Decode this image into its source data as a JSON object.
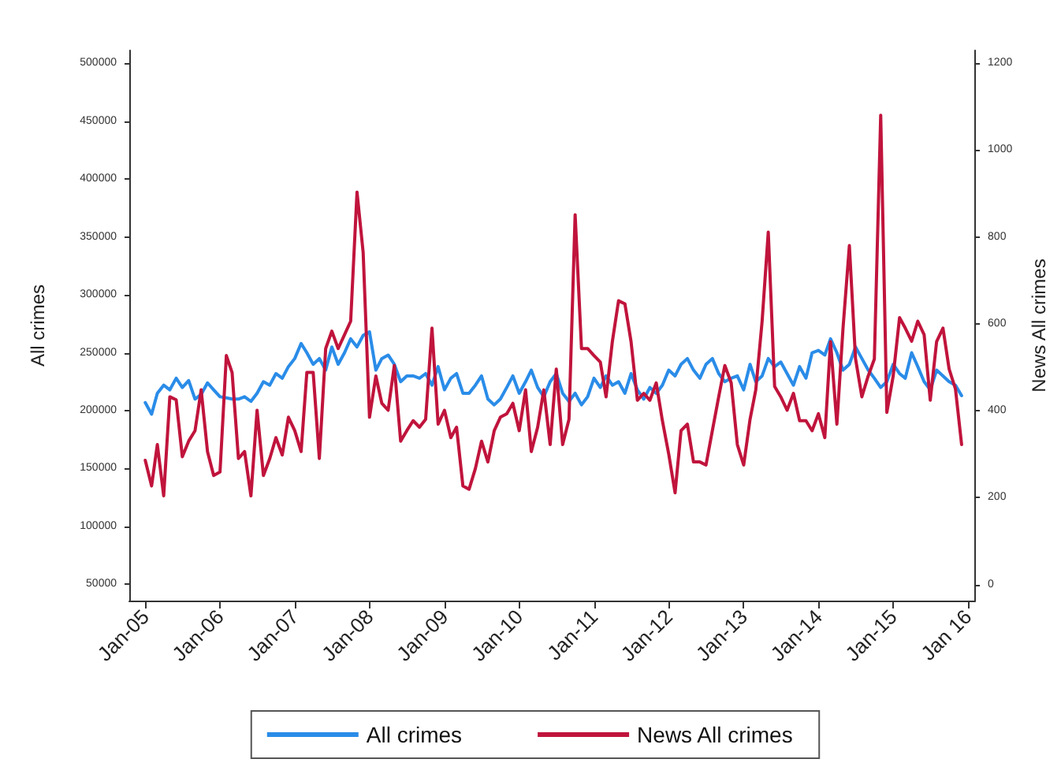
{
  "chart_data": {
    "type": "line",
    "xlabel": null,
    "ylabel": "All crimes",
    "y2label": "News All crimes",
    "x": [
      "2005-01",
      "2005-02",
      "2005-03",
      "2005-04",
      "2005-05",
      "2005-06",
      "2005-07",
      "2005-08",
      "2005-09",
      "2005-10",
      "2005-11",
      "2005-12",
      "2006-01",
      "2006-02",
      "2006-03",
      "2006-04",
      "2006-05",
      "2006-06",
      "2006-07",
      "2006-08",
      "2006-09",
      "2006-10",
      "2006-11",
      "2006-12",
      "2007-01",
      "2007-02",
      "2007-03",
      "2007-04",
      "2007-05",
      "2007-06",
      "2007-07",
      "2007-08",
      "2007-09",
      "2007-10",
      "2007-11",
      "2007-12",
      "2008-01",
      "2008-02",
      "2008-03",
      "2008-04",
      "2008-05",
      "2008-06",
      "2008-07",
      "2008-08",
      "2008-09",
      "2008-10",
      "2008-11",
      "2008-12",
      "2009-01",
      "2009-02",
      "2009-03",
      "2009-04",
      "2009-05",
      "2009-06",
      "2009-07",
      "2009-08",
      "2009-09",
      "2009-10",
      "2009-11",
      "2009-12",
      "2010-01",
      "2010-02",
      "2010-03",
      "2010-04",
      "2010-05",
      "2010-06",
      "2010-07",
      "2010-08",
      "2010-09",
      "2010-10",
      "2010-11",
      "2010-12",
      "2011-01",
      "2011-02",
      "2011-03",
      "2011-04",
      "2011-05",
      "2011-06",
      "2011-07",
      "2011-08",
      "2011-09",
      "2011-10",
      "2011-11",
      "2011-12",
      "2012-01",
      "2012-02",
      "2012-03",
      "2012-04",
      "2012-05",
      "2012-06",
      "2012-07",
      "2012-08",
      "2012-09",
      "2012-10",
      "2012-11",
      "2012-12",
      "2013-01",
      "2013-02",
      "2013-03",
      "2013-04",
      "2013-05",
      "2013-06",
      "2013-07",
      "2013-08",
      "2013-09",
      "2013-10",
      "2013-11",
      "2013-12",
      "2014-01",
      "2014-02",
      "2014-03",
      "2014-04",
      "2014-05",
      "2014-06",
      "2014-07",
      "2014-08",
      "2014-09",
      "2014-10",
      "2014-11",
      "2014-12",
      "2015-01",
      "2015-02",
      "2015-03",
      "2015-04",
      "2015-05",
      "2015-06",
      "2015-07",
      "2015-08",
      "2015-09",
      "2015-10",
      "2015-11",
      "2015-12"
    ],
    "series": [
      {
        "name": "All crimes",
        "color": "#2a8ce8",
        "values": [
          207000,
          197000,
          215000,
          222000,
          218000,
          228000,
          220000,
          226000,
          210000,
          214000,
          224000,
          218000,
          212000,
          211000,
          210000,
          210000,
          212000,
          208000,
          215000,
          225000,
          222000,
          232000,
          228000,
          238000,
          245000,
          258000,
          250000,
          240000,
          245000,
          235000,
          255000,
          240000,
          250000,
          262000,
          255000,
          265000,
          268000,
          235000,
          245000,
          248000,
          240000,
          225000,
          230000,
          230000,
          228000,
          232000,
          222000,
          238000,
          218000,
          228000,
          232000,
          215000,
          215000,
          222000,
          230000,
          210000,
          205000,
          210000,
          220000,
          230000,
          215000,
          225000,
          235000,
          220000,
          212000,
          225000,
          232000,
          215000,
          208000,
          215000,
          205000,
          212000,
          228000,
          220000,
          230000,
          222000,
          225000,
          215000,
          232000,
          218000,
          210000,
          220000,
          215000,
          222000,
          235000,
          230000,
          240000,
          245000,
          235000,
          228000,
          240000,
          245000,
          232000,
          225000,
          228000,
          230000,
          218000,
          240000,
          225000,
          230000,
          245000,
          238000,
          242000,
          232000,
          222000,
          238000,
          228000,
          250000,
          252000,
          248000,
          262000,
          250000,
          235000,
          240000,
          255000,
          245000,
          235000,
          228000,
          220000,
          225000,
          240000,
          232000,
          228000,
          250000,
          238000,
          225000,
          218000,
          235000,
          230000,
          225000,
          222000,
          213000
        ]
      },
      {
        "name": "News All crimes",
        "color": "#c0143c",
        "axis": "y2",
        "values": [
          286,
          227,
          322,
          204,
          432,
          425,
          294,
          330,
          354,
          448,
          306,
          251,
          259,
          527,
          488,
          290,
          306,
          204,
          401,
          251,
          290,
          338,
          298,
          385,
          354,
          306,
          488,
          488,
          290,
          543,
          583,
          543,
          575,
          606,
          903,
          764,
          385,
          480,
          417,
          401,
          504,
          330,
          354,
          377,
          362,
          380,
          590,
          369,
          401,
          338,
          362,
          227,
          219,
          267,
          330,
          282,
          354,
          385,
          393,
          417,
          354,
          448,
          306,
          362,
          448,
          322,
          496,
          322,
          380,
          851,
          543,
          543,
          527,
          512,
          432,
          560,
          653,
          646,
          559,
          424,
          440,
          424,
          464,
          377,
          300,
          211,
          354,
          369,
          282,
          282,
          275,
          354,
          432,
          504,
          464,
          322,
          275,
          380,
          448,
          606,
          811,
          456,
          432,
          401,
          440,
          377,
          377,
          354,
          393,
          338,
          559,
          369,
          590,
          780,
          520,
          432,
          480,
          519,
          1080,
          396,
          480,
          614,
          590,
          560,
          606,
          575,
          424,
          559,
          590,
          496,
          450,
          322
        ]
      }
    ],
    "xlim": [
      "2004-10-15",
      "2016-02-05"
    ],
    "xticks": [
      {
        "value": "2005-01",
        "label": "Jan-05"
      },
      {
        "value": "2006-01",
        "label": "Jan-06"
      },
      {
        "value": "2007-01",
        "label": "Jan-07"
      },
      {
        "value": "2008-01",
        "label": "Jan-08"
      },
      {
        "value": "2009-01",
        "label": "Jan-09"
      },
      {
        "value": "2010-01",
        "label": "Jan-10"
      },
      {
        "value": "2011-01",
        "label": "Jan-11"
      },
      {
        "value": "2012-01",
        "label": "Jan-12"
      },
      {
        "value": "2013-01",
        "label": "Jan-13"
      },
      {
        "value": "2014-01",
        "label": "Jan-14"
      },
      {
        "value": "2015-01",
        "label": "Jan-15"
      },
      {
        "value": "2016-01",
        "label": "Jan 16"
      }
    ],
    "ylim": [
      36000,
      511000
    ],
    "yticks": [
      50000,
      100000,
      150000,
      200000,
      250000,
      300000,
      350000,
      400000,
      450000,
      500000
    ],
    "y2lim": [
      -37,
      1229
    ],
    "y2ticks": [
      0,
      200,
      400,
      600,
      800,
      1000,
      1200
    ],
    "grid": false,
    "legend": "bottom",
    "marker": "none",
    "line_style": "solid"
  }
}
